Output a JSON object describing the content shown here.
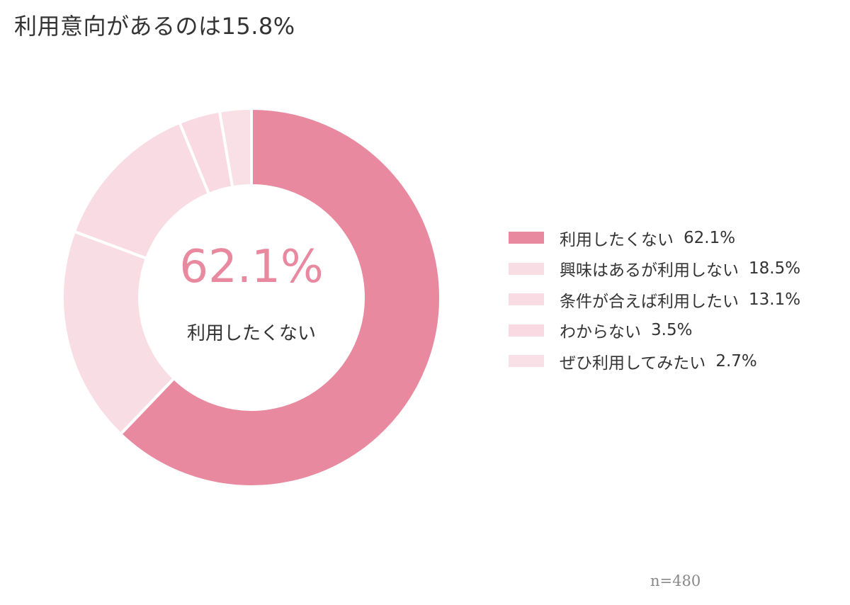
{
  "title": "利用意向があるのは15.8%",
  "center": {
    "value": "62.1%",
    "label": "利用したくない"
  },
  "footnote": "n=480",
  "chart_data": {
    "type": "pie",
    "donut": true,
    "title": "利用意向があるのは15.8%",
    "legend_position": "right",
    "categories": [
      "利用したくない",
      "興味はあるが利用しない",
      "条件が合えば利用したい",
      "わからない",
      "ぜひ利用してみたい"
    ],
    "values": [
      62.1,
      18.5,
      13.1,
      3.5,
      2.7
    ],
    "value_labels": [
      "62.1%",
      "18.5%",
      "13.1%",
      "3.5%",
      "2.7%"
    ],
    "colors": [
      "#e8899f",
      "#f9dde5",
      "#f9dbe3",
      "#f9dae2",
      "#f9dfe6"
    ]
  }
}
